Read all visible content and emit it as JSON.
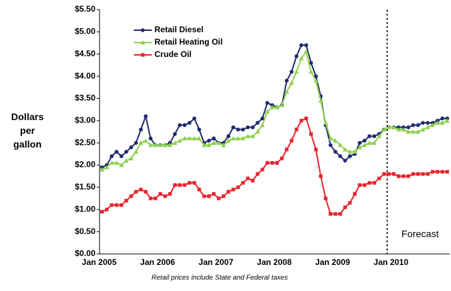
{
  "chart_data": {
    "type": "line",
    "ylabel": "Dollars per gallon",
    "note": "Retail prices include State and Federal taxes",
    "annotation": "Forecast",
    "legend": "upper left",
    "categories": [
      "Jan 2005",
      null,
      null,
      null,
      null,
      null,
      null,
      null,
      null,
      null,
      null,
      null,
      "Jan 2006",
      null,
      null,
      null,
      null,
      null,
      null,
      null,
      null,
      null,
      null,
      null,
      "Jan 2007",
      null,
      null,
      null,
      null,
      null,
      null,
      null,
      null,
      null,
      null,
      null,
      "Jan 2008",
      null,
      null,
      null,
      null,
      null,
      null,
      null,
      null,
      null,
      null,
      null,
      "Jan 2009",
      null,
      null,
      null,
      null,
      null,
      null,
      null,
      null,
      null,
      null,
      null,
      "Jan 2010",
      null,
      null,
      null,
      null,
      null,
      null,
      null,
      null,
      null,
      null,
      null
    ],
    "series": [
      {
        "name": "Retail Diesel",
        "color": "#1f2a6e",
        "marker": "circle",
        "values": [
          1.95,
          2.0,
          2.2,
          2.3,
          2.2,
          2.3,
          2.4,
          2.5,
          2.8,
          3.1,
          2.6,
          2.45,
          2.45,
          2.45,
          2.5,
          2.7,
          2.9,
          2.9,
          2.95,
          3.05,
          2.8,
          2.5,
          2.55,
          2.6,
          2.5,
          2.5,
          2.65,
          2.85,
          2.8,
          2.8,
          2.85,
          2.85,
          2.95,
          3.05,
          3.4,
          3.35,
          3.3,
          3.35,
          3.9,
          4.1,
          4.45,
          4.7,
          4.7,
          4.3,
          4.0,
          3.55,
          2.9,
          2.45,
          2.3,
          2.2,
          2.1,
          2.2,
          2.25,
          2.5,
          2.55,
          2.65,
          2.65,
          2.7,
          2.8,
          2.85,
          2.85,
          2.85,
          2.85,
          2.85,
          2.9,
          2.9,
          2.95,
          2.95,
          2.95,
          3.0,
          3.05,
          3.05
        ]
      },
      {
        "name": "Retail Heating Oil",
        "color": "#8fd14f",
        "marker": "triangle",
        "values": [
          1.9,
          1.95,
          2.05,
          2.05,
          2.0,
          2.1,
          2.15,
          2.3,
          2.5,
          2.55,
          2.45,
          2.45,
          2.45,
          2.45,
          2.45,
          2.5,
          2.55,
          2.6,
          2.6,
          2.6,
          2.6,
          2.45,
          2.45,
          2.5,
          2.5,
          2.45,
          2.55,
          2.6,
          2.6,
          2.6,
          2.65,
          2.65,
          2.75,
          2.9,
          3.2,
          3.3,
          3.3,
          3.35,
          3.65,
          3.85,
          4.1,
          4.4,
          4.55,
          4.1,
          3.9,
          3.45,
          2.95,
          2.6,
          2.55,
          2.45,
          2.35,
          2.3,
          2.3,
          2.4,
          2.45,
          2.5,
          2.5,
          2.65,
          2.8,
          2.85,
          2.85,
          2.8,
          2.8,
          2.75,
          2.75,
          2.75,
          2.8,
          2.85,
          2.9,
          2.95,
          2.95,
          3.0
        ]
      },
      {
        "name": "Crude Oil",
        "color": "#e8252c",
        "marker": "square",
        "values": [
          0.95,
          1.0,
          1.1,
          1.1,
          1.1,
          1.2,
          1.3,
          1.4,
          1.45,
          1.4,
          1.25,
          1.25,
          1.35,
          1.3,
          1.35,
          1.55,
          1.55,
          1.55,
          1.6,
          1.6,
          1.45,
          1.3,
          1.3,
          1.35,
          1.25,
          1.3,
          1.4,
          1.45,
          1.5,
          1.6,
          1.7,
          1.65,
          1.8,
          1.9,
          2.05,
          2.05,
          2.05,
          2.15,
          2.35,
          2.55,
          2.8,
          3.0,
          3.05,
          2.7,
          2.35,
          1.75,
          1.25,
          0.9,
          0.9,
          0.9,
          1.05,
          1.15,
          1.35,
          1.55,
          1.55,
          1.6,
          1.6,
          1.7,
          1.8,
          1.8,
          1.8,
          1.75,
          1.75,
          1.75,
          1.8,
          1.8,
          1.8,
          1.8,
          1.85,
          1.85,
          1.85,
          1.85
        ]
      }
    ],
    "ylim": [
      0,
      5.5
    ],
    "yticks": [
      {
        "value": 0,
        "label": "$0.00"
      },
      {
        "value": 0.5,
        "label": "$0.50"
      },
      {
        "value": 1,
        "label": "$1.00"
      },
      {
        "value": 1.5,
        "label": "$1.50"
      },
      {
        "value": 2,
        "label": "$2.00"
      },
      {
        "value": 2.5,
        "label": "$2.50"
      },
      {
        "value": 3,
        "label": "$3.00"
      },
      {
        "value": 3.5,
        "label": "$3.50"
      },
      {
        "value": 4,
        "label": "$4.00"
      },
      {
        "value": 4.5,
        "label": "$4.50"
      },
      {
        "value": 5,
        "label": "$5.00"
      },
      {
        "value": 5.5,
        "label": "$5.50"
      }
    ]
  }
}
